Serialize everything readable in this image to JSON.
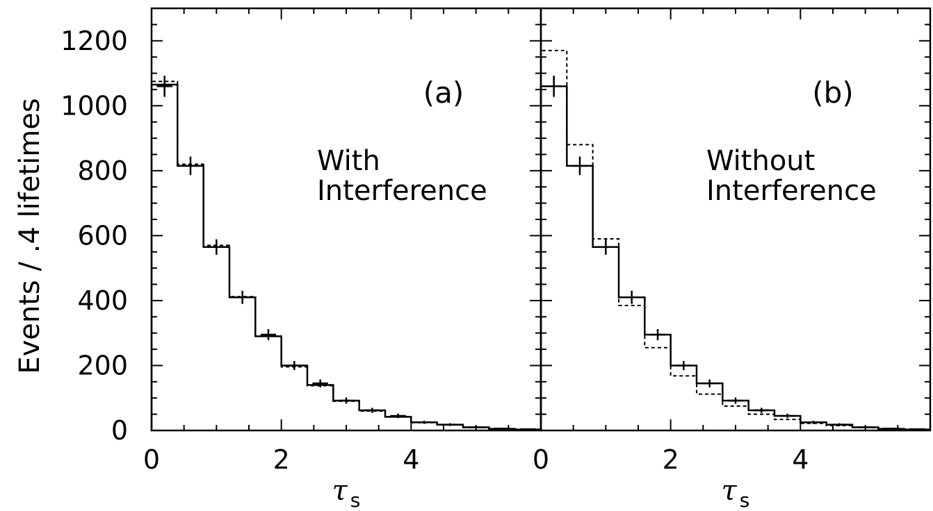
{
  "chart_data": [
    {
      "type": "histogram",
      "panel_label": "(a)",
      "annotation": [
        "With",
        "Interference"
      ],
      "xlabel": "τ",
      "xlabel_sub": "s",
      "ylabel": "Events / .4 lifetimes",
      "xlim": [
        0,
        6
      ],
      "ylim": [
        0,
        1300
      ],
      "x_ticks": [
        0,
        2,
        4
      ],
      "y_ticks": [
        0,
        200,
        400,
        600,
        800,
        1000,
        1200
      ],
      "bin_width": 0.4,
      "bin_edges": [
        0,
        0.4,
        0.8,
        1.2,
        1.6,
        2.0,
        2.4,
        2.8,
        3.2,
        3.6,
        4.0,
        4.4,
        4.8,
        5.2,
        5.6,
        6.0
      ],
      "data_points": [
        {
          "x": 0.2,
          "y": 1060
        },
        {
          "x": 0.6,
          "y": 815
        },
        {
          "x": 1.0,
          "y": 565
        },
        {
          "x": 1.4,
          "y": 410
        },
        {
          "x": 1.8,
          "y": 295
        },
        {
          "x": 2.2,
          "y": 200
        },
        {
          "x": 2.6,
          "y": 145
        },
        {
          "x": 3.0,
          "y": 92
        },
        {
          "x": 3.4,
          "y": 62
        },
        {
          "x": 3.8,
          "y": 45
        },
        {
          "x": 4.2,
          "y": 25
        },
        {
          "x": 4.6,
          "y": 18
        },
        {
          "x": 5.0,
          "y": 10
        },
        {
          "x": 5.4,
          "y": 6
        },
        {
          "x": 5.8,
          "y": 4
        }
      ],
      "fit_solid": [
        1065,
        815,
        565,
        410,
        290,
        200,
        140,
        92,
        62,
        42,
        25,
        18,
        10,
        5,
        3
      ],
      "fit_dashed": [
        1075,
        820,
        570,
        412,
        290,
        196,
        138,
        90,
        60,
        42,
        24,
        17,
        9,
        5,
        3
      ]
    },
    {
      "type": "histogram",
      "panel_label": "(b)",
      "annotation": [
        "Without",
        "Interference"
      ],
      "xlabel": "τ",
      "xlabel_sub": "s",
      "xlim": [
        0,
        6
      ],
      "ylim": [
        0,
        1300
      ],
      "x_ticks": [
        0,
        2,
        4
      ],
      "bin_width": 0.4,
      "bin_edges": [
        0,
        0.4,
        0.8,
        1.2,
        1.6,
        2.0,
        2.4,
        2.8,
        3.2,
        3.6,
        4.0,
        4.4,
        4.8,
        5.2,
        5.6,
        6.0
      ],
      "data_points": [
        {
          "x": 0.2,
          "y": 1060
        },
        {
          "x": 0.6,
          "y": 815
        },
        {
          "x": 1.0,
          "y": 565
        },
        {
          "x": 1.4,
          "y": 410
        },
        {
          "x": 1.8,
          "y": 295
        },
        {
          "x": 2.2,
          "y": 200
        },
        {
          "x": 2.6,
          "y": 145
        },
        {
          "x": 3.0,
          "y": 92
        },
        {
          "x": 3.4,
          "y": 62
        },
        {
          "x": 3.8,
          "y": 45
        },
        {
          "x": 4.2,
          "y": 25
        },
        {
          "x": 4.6,
          "y": 18
        },
        {
          "x": 5.0,
          "y": 10
        },
        {
          "x": 5.4,
          "y": 6
        },
        {
          "x": 5.8,
          "y": 4
        }
      ],
      "fit_solid": [
        1060,
        815,
        565,
        410,
        295,
        200,
        145,
        92,
        62,
        45,
        25,
        18,
        10,
        5,
        3
      ],
      "fit_dashed": [
        1170,
        880,
        590,
        385,
        255,
        168,
        112,
        75,
        50,
        34,
        22,
        15,
        9,
        5,
        3
      ]
    }
  ]
}
